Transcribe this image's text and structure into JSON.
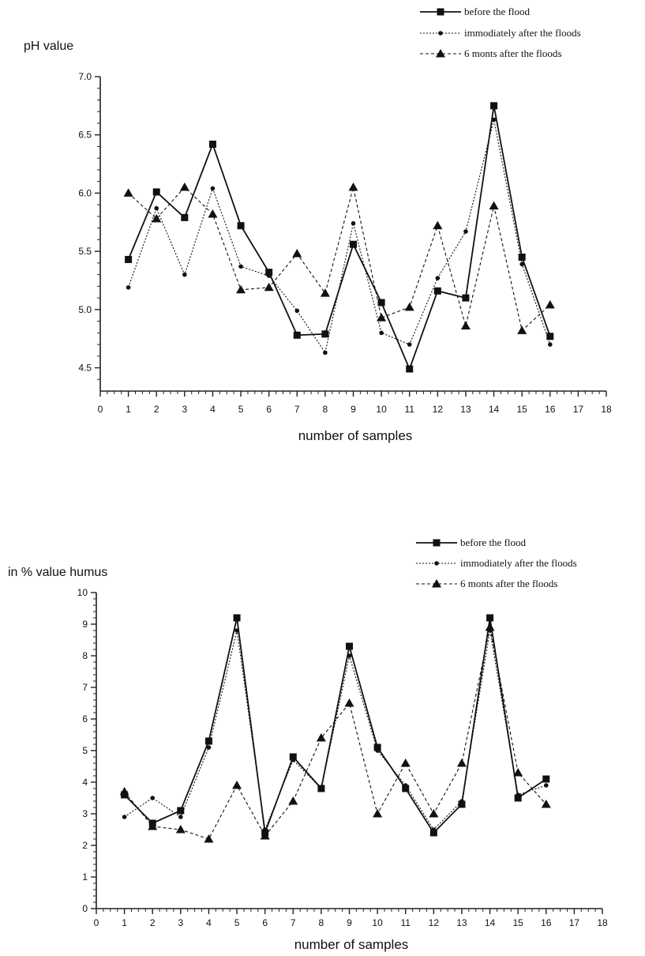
{
  "chart_data": [
    {
      "type": "line",
      "ylabel": "pH value",
      "xlabel": "number of samples",
      "xlim": [
        0,
        18
      ],
      "ylim": [
        4.3,
        7.0
      ],
      "yticks": [
        4.5,
        5.0,
        5.5,
        6.0,
        6.5,
        7.0
      ],
      "ytick_labels": [
        "4.5",
        "5.0",
        "5.5",
        "6.0",
        "6.5",
        "7.0"
      ],
      "xticks": [
        0,
        1,
        2,
        3,
        4,
        5,
        6,
        7,
        8,
        9,
        10,
        11,
        12,
        13,
        14,
        15,
        16,
        17,
        18
      ],
      "x": [
        1,
        2,
        3,
        4,
        5,
        6,
        7,
        8,
        9,
        10,
        11,
        12,
        13,
        14,
        15,
        16
      ],
      "legend_position": "top-right",
      "grid": false,
      "series": [
        {
          "name": "before the flood",
          "marker": "square",
          "dash": "solid",
          "values": [
            5.43,
            6.01,
            5.79,
            6.42,
            5.72,
            5.32,
            4.78,
            4.79,
            5.56,
            5.06,
            4.49,
            5.16,
            5.1,
            6.75,
            5.45,
            4.77
          ]
        },
        {
          "name": "immodiately after the floods",
          "marker": "dot",
          "dash": "dotted",
          "values": [
            5.19,
            5.87,
            5.3,
            6.04,
            5.37,
            5.29,
            4.99,
            4.63,
            5.74,
            4.8,
            4.7,
            5.27,
            5.67,
            6.63,
            5.39,
            4.7
          ]
        },
        {
          "name": "6 monts after the floods",
          "marker": "triangle",
          "dash": "dashed",
          "values": [
            6.0,
            5.78,
            6.05,
            5.82,
            5.17,
            5.19,
            5.48,
            5.14,
            6.05,
            4.93,
            5.02,
            5.72,
            4.86,
            5.89,
            4.82,
            5.04
          ]
        }
      ]
    },
    {
      "type": "line",
      "ylabel": "in % value humus",
      "xlabel": "number of samples",
      "xlim": [
        0,
        18
      ],
      "ylim": [
        0,
        10
      ],
      "yticks": [
        0,
        1,
        2,
        3,
        4,
        5,
        6,
        7,
        8,
        9,
        10
      ],
      "ytick_labels": [
        "0",
        "1",
        "2",
        "3",
        "4",
        "5",
        "6",
        "7",
        "8",
        "9",
        "10"
      ],
      "xticks": [
        0,
        1,
        2,
        3,
        4,
        5,
        6,
        7,
        8,
        9,
        10,
        11,
        12,
        13,
        14,
        15,
        16,
        17,
        18
      ],
      "x": [
        1,
        2,
        3,
        4,
        5,
        6,
        7,
        8,
        9,
        10,
        11,
        12,
        13,
        14,
        15,
        16
      ],
      "legend_position": "top-right",
      "grid": false,
      "series": [
        {
          "name": "before the flood",
          "marker": "square",
          "dash": "solid",
          "values": [
            3.6,
            2.7,
            3.1,
            5.3,
            9.2,
            2.4,
            4.8,
            3.8,
            8.3,
            5.1,
            3.8,
            2.4,
            3.3,
            9.2,
            3.5,
            4.1
          ]
        },
        {
          "name": "immodiately after the floods",
          "marker": "dot",
          "dash": "dotted",
          "values": [
            2.9,
            3.5,
            2.9,
            5.1,
            8.8,
            2.5,
            4.7,
            3.8,
            8.0,
            5.0,
            3.9,
            2.5,
            3.4,
            8.8,
            3.6,
            3.9
          ]
        },
        {
          "name": "6 monts after the floods",
          "marker": "triangle",
          "dash": "dashed",
          "values": [
            3.7,
            2.6,
            2.5,
            2.2,
            3.9,
            2.3,
            3.4,
            5.4,
            6.5,
            3.0,
            4.6,
            3.0,
            4.6,
            8.9,
            4.3,
            3.3
          ]
        }
      ]
    }
  ]
}
